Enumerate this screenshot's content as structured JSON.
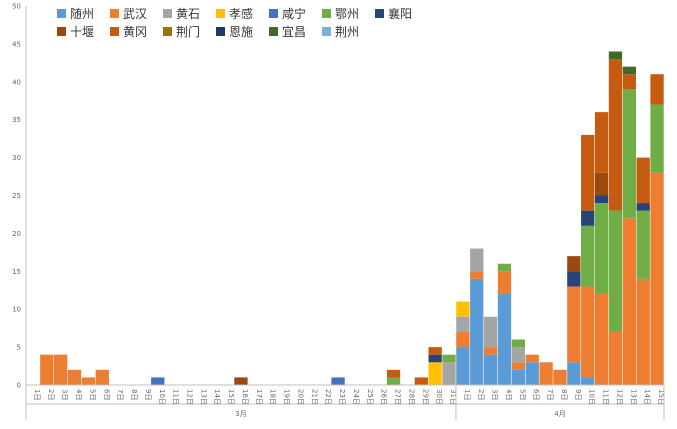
{
  "chart_data": {
    "type": "bar",
    "stacked": true,
    "ylim": [
      0,
      50
    ],
    "y_ticks": [
      0,
      5,
      10,
      15,
      20,
      25,
      30,
      35,
      40,
      45,
      50
    ],
    "categories": [
      "1日",
      "2日",
      "3日",
      "4日",
      "5日",
      "6日",
      "7日",
      "8日",
      "9日",
      "10日",
      "11日",
      "12日",
      "13日",
      "14日",
      "15日",
      "16日",
      "17日",
      "18日",
      "19日",
      "20日",
      "21日",
      "22日",
      "23日",
      "24日",
      "25日",
      "26日",
      "27日",
      "28日",
      "29日",
      "30日",
      "31日",
      "1日",
      "2日",
      "3日",
      "4日",
      "5日",
      "6日",
      "7日",
      "8日",
      "9日",
      "10日",
      "11日",
      "12日",
      "13日",
      "14日",
      "15日"
    ],
    "months": [
      {
        "label": "3月",
        "start": 0,
        "end": 30
      },
      {
        "label": "4月",
        "start": 31,
        "end": 45
      }
    ],
    "series": [
      {
        "name": "随州",
        "color": "#5B9BD5",
        "values": [
          0,
          0,
          0,
          0,
          0,
          0,
          0,
          0,
          0,
          0,
          0,
          0,
          0,
          0,
          0,
          0,
          0,
          0,
          0,
          0,
          0,
          0,
          0,
          0,
          0,
          0,
          0,
          0,
          0,
          0,
          0,
          5,
          14,
          4,
          12,
          2,
          3,
          0,
          0,
          3,
          1,
          0,
          0,
          0,
          0,
          0
        ]
      },
      {
        "name": "武汉",
        "color": "#ED7D31",
        "values": [
          0,
          4,
          4,
          2,
          1,
          2,
          0,
          0,
          0,
          0,
          0,
          0,
          0,
          0,
          0,
          0,
          0,
          0,
          0,
          0,
          0,
          0,
          0,
          0,
          0,
          0,
          0,
          0,
          0,
          0,
          0,
          2,
          1,
          1,
          3,
          1,
          1,
          3,
          2,
          10,
          12,
          12,
          7,
          22,
          14,
          28
        ]
      },
      {
        "name": "黄石",
        "color": "#A5A5A5",
        "values": [
          0,
          0,
          0,
          0,
          0,
          0,
          0,
          0,
          0,
          0,
          0,
          0,
          0,
          0,
          0,
          0,
          0,
          0,
          0,
          0,
          0,
          0,
          0,
          0,
          0,
          0,
          0,
          0,
          0,
          0,
          3,
          2,
          3,
          4,
          0,
          2,
          0,
          0,
          0,
          0,
          0,
          0,
          0,
          0,
          0,
          0
        ]
      },
      {
        "name": "孝感",
        "color": "#FFC000",
        "values": [
          0,
          0,
          0,
          0,
          0,
          0,
          0,
          0,
          0,
          0,
          0,
          0,
          0,
          0,
          0,
          0,
          0,
          0,
          0,
          0,
          0,
          0,
          0,
          0,
          0,
          0,
          0,
          0,
          0,
          3,
          0,
          2,
          0,
          0,
          0,
          0,
          0,
          0,
          0,
          0,
          0,
          0,
          0,
          0,
          0,
          0
        ]
      },
      {
        "name": "咸宁",
        "color": "#4472C4",
        "values": [
          0,
          0,
          0,
          0,
          0,
          0,
          0,
          0,
          0,
          1,
          0,
          0,
          0,
          0,
          0,
          0,
          0,
          0,
          0,
          0,
          0,
          0,
          1,
          0,
          0,
          0,
          0,
          0,
          0,
          0,
          0,
          0,
          0,
          0,
          0,
          0,
          0,
          0,
          0,
          0,
          0,
          0,
          0,
          0,
          0,
          0
        ]
      },
      {
        "name": "鄂州",
        "color": "#70AD47",
        "values": [
          0,
          0,
          0,
          0,
          0,
          0,
          0,
          0,
          0,
          0,
          0,
          0,
          0,
          0,
          0,
          0,
          0,
          0,
          0,
          0,
          0,
          0,
          0,
          0,
          0,
          0,
          1,
          0,
          0,
          0,
          1,
          0,
          0,
          0,
          1,
          1,
          0,
          0,
          0,
          0,
          8,
          12,
          16,
          17,
          9,
          9
        ]
      },
      {
        "name": "襄阳",
        "color": "#264478",
        "values": [
          0,
          0,
          0,
          0,
          0,
          0,
          0,
          0,
          0,
          0,
          0,
          0,
          0,
          0,
          0,
          0,
          0,
          0,
          0,
          0,
          0,
          0,
          0,
          0,
          0,
          0,
          0,
          0,
          0,
          1,
          0,
          0,
          0,
          0,
          0,
          0,
          0,
          0,
          0,
          2,
          2,
          1,
          0,
          0,
          1,
          0
        ]
      },
      {
        "name": "十堰",
        "color": "#9E480E",
        "values": [
          0,
          0,
          0,
          0,
          0,
          0,
          0,
          0,
          0,
          0,
          0,
          0,
          0,
          0,
          0,
          1,
          0,
          0,
          0,
          0,
          0,
          0,
          0,
          0,
          0,
          0,
          0,
          0,
          0,
          0,
          0,
          0,
          0,
          0,
          0,
          0,
          0,
          0,
          0,
          2,
          0,
          3,
          0,
          0,
          0,
          0
        ]
      },
      {
        "name": "黄冈",
        "color": "#C55A11",
        "values": [
          0,
          0,
          0,
          0,
          0,
          0,
          0,
          0,
          0,
          0,
          0,
          0,
          0,
          0,
          0,
          0,
          0,
          0,
          0,
          0,
          0,
          0,
          0,
          0,
          0,
          0,
          1,
          0,
          1,
          1,
          0,
          0,
          0,
          0,
          0,
          0,
          0,
          0,
          0,
          0,
          10,
          8,
          20,
          2,
          6,
          4
        ]
      },
      {
        "name": "荆门",
        "color": "#997300",
        "values": [
          0,
          0,
          0,
          0,
          0,
          0,
          0,
          0,
          0,
          0,
          0,
          0,
          0,
          0,
          0,
          0,
          0,
          0,
          0,
          0,
          0,
          0,
          0,
          0,
          0,
          0,
          0,
          0,
          0,
          0,
          0,
          0,
          0,
          0,
          0,
          0,
          0,
          0,
          0,
          0,
          0,
          0,
          0,
          0,
          0,
          0
        ]
      },
      {
        "name": "恩施",
        "color": "#203864",
        "values": [
          0,
          0,
          0,
          0,
          0,
          0,
          0,
          0,
          0,
          0,
          0,
          0,
          0,
          0,
          0,
          0,
          0,
          0,
          0,
          0,
          0,
          0,
          0,
          0,
          0,
          0,
          0,
          0,
          0,
          0,
          0,
          0,
          0,
          0,
          0,
          0,
          0,
          0,
          0,
          0,
          0,
          0,
          0,
          0,
          0,
          0
        ]
      },
      {
        "name": "宜昌",
        "color": "#43682B",
        "values": [
          0,
          0,
          0,
          0,
          0,
          0,
          0,
          0,
          0,
          0,
          0,
          0,
          0,
          0,
          0,
          0,
          0,
          0,
          0,
          0,
          0,
          0,
          0,
          0,
          0,
          0,
          0,
          0,
          0,
          0,
          0,
          0,
          0,
          0,
          0,
          0,
          0,
          0,
          0,
          0,
          0,
          0,
          1,
          1,
          0,
          0
        ]
      },
      {
        "name": "荆州",
        "color": "#7CAFDD",
        "values": [
          0,
          0,
          0,
          0,
          0,
          0,
          0,
          0,
          0,
          0,
          0,
          0,
          0,
          0,
          0,
          0,
          0,
          0,
          0,
          0,
          0,
          0,
          0,
          0,
          0,
          0,
          0,
          0,
          0,
          0,
          0,
          0,
          0,
          0,
          0,
          0,
          0,
          0,
          0,
          0,
          0,
          0,
          0,
          0,
          0,
          0
        ]
      }
    ],
    "legend_position": "top-left",
    "grid": false
  }
}
